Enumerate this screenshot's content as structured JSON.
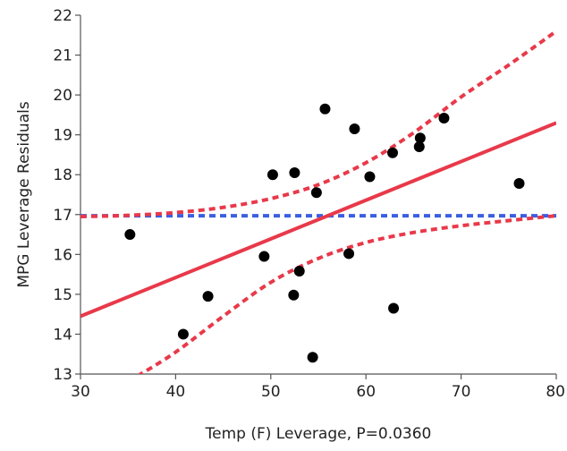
{
  "chart_data": {
    "type": "scatter",
    "xlabel": "Temp (F) Leverage, P=0.0360",
    "ylabel": "MPG Leverage Residuals",
    "xlim": [
      30,
      80
    ],
    "ylim": [
      13,
      22
    ],
    "x_ticks": [
      30,
      40,
      50,
      60,
      70,
      80
    ],
    "y_ticks": [
      13,
      14,
      15,
      16,
      17,
      18,
      19,
      20,
      21,
      22
    ],
    "grid": false,
    "points": [
      {
        "x": 35.2,
        "y": 16.5
      },
      {
        "x": 40.8,
        "y": 14.0
      },
      {
        "x": 43.4,
        "y": 14.95
      },
      {
        "x": 49.3,
        "y": 15.95
      },
      {
        "x": 50.2,
        "y": 18.0
      },
      {
        "x": 52.4,
        "y": 14.98
      },
      {
        "x": 52.5,
        "y": 18.05
      },
      {
        "x": 53.0,
        "y": 15.58
      },
      {
        "x": 54.4,
        "y": 13.42
      },
      {
        "x": 54.8,
        "y": 17.55
      },
      {
        "x": 55.7,
        "y": 19.65
      },
      {
        "x": 58.2,
        "y": 16.02
      },
      {
        "x": 58.8,
        "y": 19.15
      },
      {
        "x": 60.4,
        "y": 17.95
      },
      {
        "x": 62.8,
        "y": 18.55
      },
      {
        "x": 62.9,
        "y": 14.65
      },
      {
        "x": 65.6,
        "y": 18.7
      },
      {
        "x": 65.7,
        "y": 18.92
      },
      {
        "x": 68.2,
        "y": 19.42
      },
      {
        "x": 76.1,
        "y": 17.78
      }
    ],
    "fit_line": {
      "x": [
        30,
        80
      ],
      "y": [
        14.45,
        19.3
      ]
    },
    "mean_line": {
      "y": 16.97
    },
    "confidence_upper": {
      "x": [
        30,
        35,
        40,
        45,
        50,
        55,
        60,
        65,
        70,
        75,
        80
      ],
      "y": [
        16.95,
        16.98,
        17.05,
        17.18,
        17.4,
        17.75,
        18.3,
        19.05,
        19.95,
        20.75,
        21.6
      ]
    },
    "confidence_lower": {
      "x": [
        36,
        40,
        45,
        50,
        55,
        60,
        65,
        70,
        75,
        80
      ],
      "y": [
        12.95,
        13.55,
        14.45,
        15.3,
        15.9,
        16.3,
        16.55,
        16.72,
        16.85,
        16.97
      ]
    },
    "colors": {
      "points": "#000000",
      "fit_line": "#e8394a",
      "confidence": "#e8394a",
      "mean_line": "#3b5fe0",
      "axes": "#555555"
    }
  }
}
